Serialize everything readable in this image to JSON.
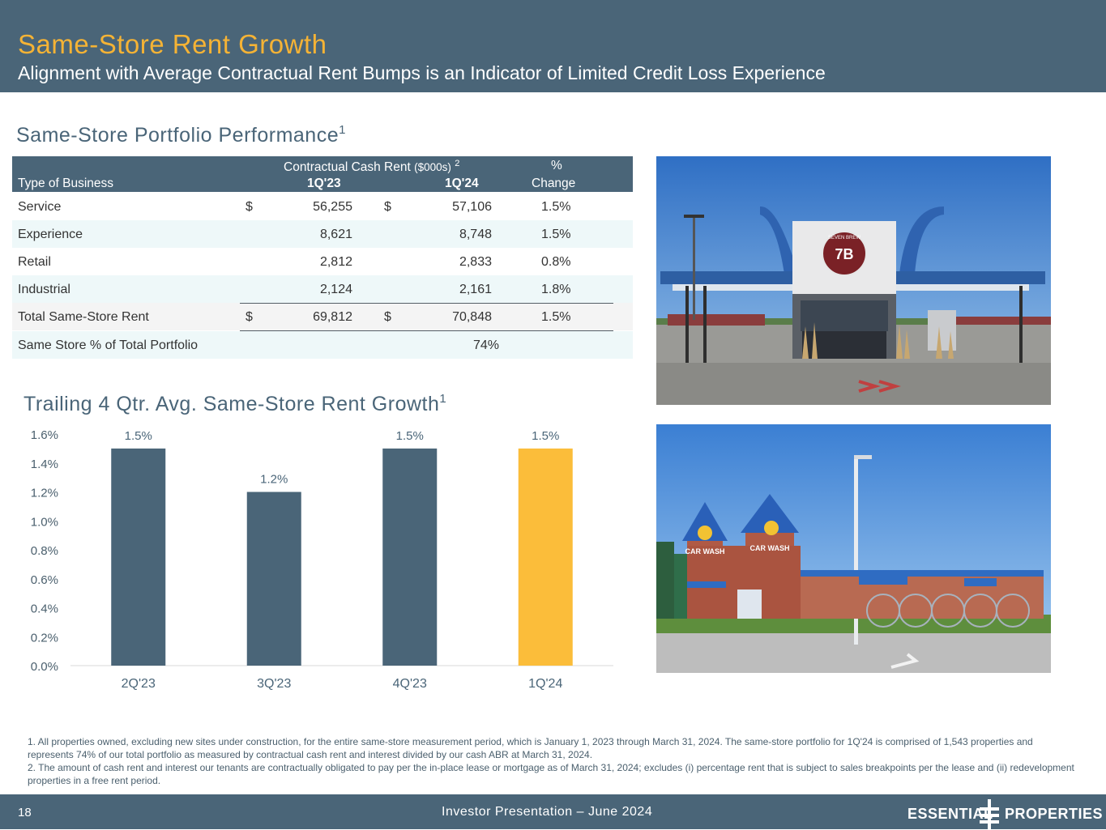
{
  "header": {
    "title": "Same-Store Rent Growth",
    "subtitle": "Alignment with Average Contractual Rent Bumps is an Indicator of Limited Credit Loss Experience"
  },
  "table_section": {
    "title": "Same-Store Portfolio Performance",
    "sup": "1"
  },
  "table": {
    "header_group": "Contractual Cash Rent",
    "header_units": "($000s)",
    "header_sup": "2",
    "col_type": "Type of Business",
    "col_q1": "1Q'23",
    "col_q2": "1Q'24",
    "col_pct_1": "%",
    "col_pct_2": "Change",
    "rows": [
      {
        "name": "Service",
        "d1": "$",
        "v1": "56,255",
        "d2": "$",
        "v2": "57,106",
        "chg": "1.5%"
      },
      {
        "name": "Experience",
        "d1": "",
        "v1": "8,621",
        "d2": "",
        "v2": "8,748",
        "chg": "1.5%"
      },
      {
        "name": "Retail",
        "d1": "",
        "v1": "2,812",
        "d2": "",
        "v2": "2,833",
        "chg": "0.8%"
      },
      {
        "name": "Industrial",
        "d1": "",
        "v1": "2,124",
        "d2": "",
        "v2": "2,161",
        "chg": "1.8%"
      },
      {
        "name": "Total Same-Store Rent",
        "d1": "$",
        "v1": "69,812",
        "d2": "$",
        "v2": "70,848",
        "chg": "1.5%"
      }
    ],
    "portfolio_label": "Same Store % of Total Portfolio",
    "portfolio_value": "74%"
  },
  "chart_section": {
    "title": "Trailing 4 Qtr. Avg. Same-Store Rent Growth",
    "sup": "1"
  },
  "chart_data": {
    "type": "bar",
    "categories": [
      "2Q'23",
      "3Q'23",
      "4Q'23",
      "1Q'24"
    ],
    "values": [
      1.5,
      1.2,
      1.5,
      1.5
    ],
    "data_labels": [
      "1.5%",
      "1.2%",
      "1.5%",
      "1.5%"
    ],
    "ylim": [
      0,
      1.6
    ],
    "yticks": [
      "0.0%",
      "0.2%",
      "0.4%",
      "0.6%",
      "0.8%",
      "1.0%",
      "1.2%",
      "1.4%",
      "1.6%"
    ],
    "bar_colors": [
      "#4a6578",
      "#4a6578",
      "#4a6578",
      "#fbbd3a"
    ],
    "grid": false
  },
  "photos": {
    "top_sign_text": "SEVEN BREW",
    "top_sign_number": "7B",
    "bottom_sign_text": "CAR WASH"
  },
  "footnotes": [
    "1. All properties owned, excluding new sites under construction, for the entire same-store measurement period, which is January 1, 2023 through March 31, 2024. The same-store portfolio for 1Q'24 is comprised of 1,543 properties and represents 74% of our total portfolio as measured by contractual cash rent and interest divided by our cash ABR at March 31, 2024.",
    "2. The amount of cash rent and interest our tenants are contractually obligated to pay per the in-place lease or mortgage as of March 31, 2024; excludes (i) percentage rent that is subject to sales breakpoints per the lease and (ii) redevelopment properties in a free rent period."
  ],
  "footer": {
    "page": "18",
    "presentation": "Investor Presentation – June 2024",
    "logo_left": "ESSENTIAL",
    "logo_right": "PROPERTIES"
  },
  "colors": {
    "brand": "#4a6578",
    "accent": "#f5b335",
    "highlight_bar": "#fbbd3a",
    "row_shade": "#eef8f9"
  }
}
